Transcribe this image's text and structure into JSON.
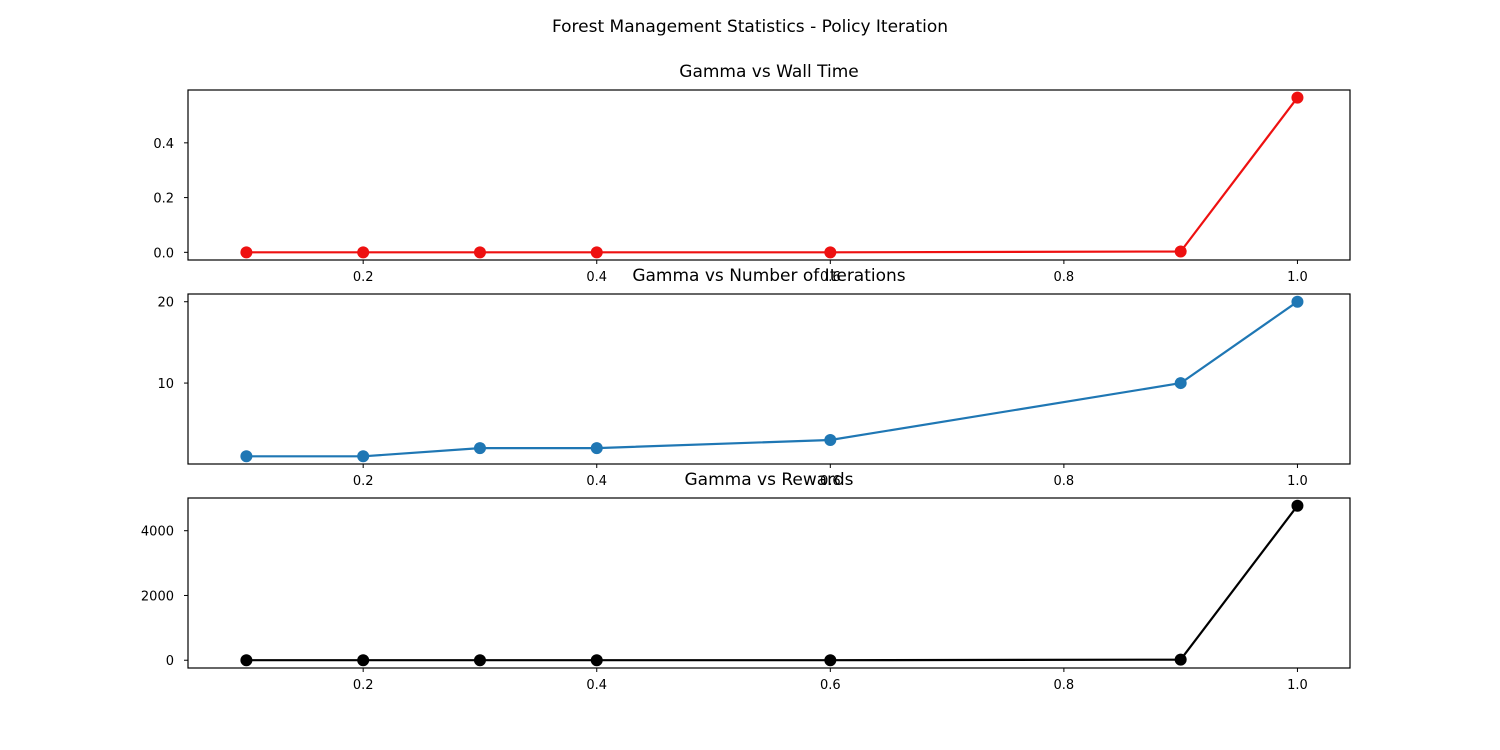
{
  "figure": {
    "suptitle": "Forest Management Statistics - Policy Iteration"
  },
  "chart_data": [
    {
      "type": "line",
      "title": "Gamma vs Wall Time",
      "xlabel": "",
      "ylabel": "",
      "x": [
        0.1,
        0.2,
        0.3,
        0.4,
        0.6,
        0.9,
        1.0
      ],
      "series": [
        {
          "values": [
            0.0,
            0.0,
            0.0,
            0.0,
            0.0,
            0.003,
            0.565
          ],
          "color": "#ee1111",
          "marker": "circle"
        }
      ],
      "xlim": [
        0.05,
        1.045
      ],
      "ylim": [
        -0.028,
        0.593
      ],
      "xticks": [
        0.2,
        0.4,
        0.6,
        0.8,
        1.0
      ],
      "xtick_labels": [
        "0.2",
        "0.4",
        "0.6",
        "0.8",
        "1.0"
      ],
      "yticks": [
        0.0,
        0.2,
        0.4
      ],
      "ytick_labels": [
        "0.0",
        "0.2",
        "0.4"
      ],
      "grid": false
    },
    {
      "type": "line",
      "title": "Gamma vs Number of Iterations",
      "xlabel": "",
      "ylabel": "",
      "x": [
        0.1,
        0.2,
        0.3,
        0.4,
        0.6,
        0.9,
        1.0
      ],
      "series": [
        {
          "values": [
            1,
            1,
            2,
            2,
            3,
            10,
            20
          ],
          "color": "#1f77b4",
          "marker": "circle"
        }
      ],
      "xlim": [
        0.05,
        1.045
      ],
      "ylim": [
        0.05,
        20.95
      ],
      "xticks": [
        0.2,
        0.4,
        0.6,
        0.8,
        1.0
      ],
      "xtick_labels": [
        "0.2",
        "0.4",
        "0.6",
        "0.8",
        "1.0"
      ],
      "yticks": [
        10,
        20
      ],
      "ytick_labels": [
        "10",
        "20"
      ],
      "grid": false
    },
    {
      "type": "line",
      "title": "Gamma vs Rewards",
      "xlabel": "",
      "ylabel": "",
      "x": [
        0.1,
        0.2,
        0.3,
        0.4,
        0.6,
        0.9,
        1.0
      ],
      "series": [
        {
          "values": [
            0,
            0,
            0,
            0,
            0,
            20,
            4770
          ],
          "color": "#000000",
          "marker": "circle"
        }
      ],
      "xlim": [
        0.05,
        1.045
      ],
      "ylim": [
        -240,
        5010
      ],
      "xticks": [
        0.2,
        0.4,
        0.6,
        0.8,
        1.0
      ],
      "xtick_labels": [
        "0.2",
        "0.4",
        "0.6",
        "0.8",
        "1.0"
      ],
      "yticks": [
        0,
        2000,
        4000
      ],
      "ytick_labels": [
        "0",
        "2000",
        "4000"
      ],
      "grid": false
    }
  ]
}
